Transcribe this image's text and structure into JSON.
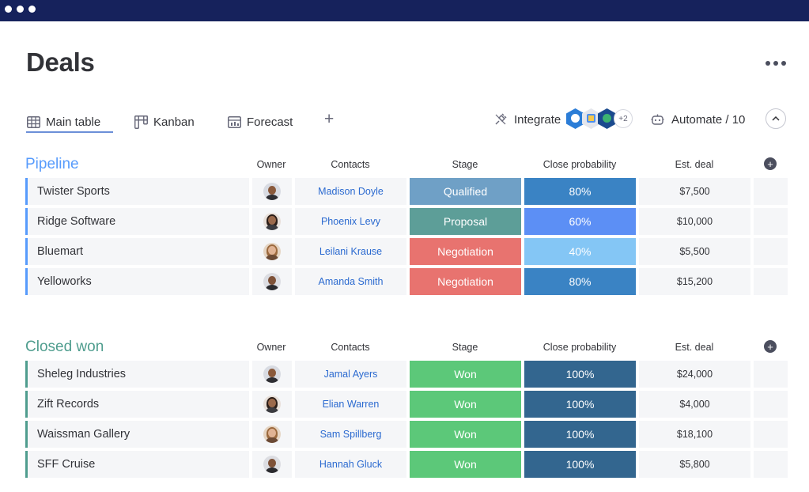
{
  "page": {
    "title": "Deals"
  },
  "views": [
    {
      "label": "Main table",
      "icon": "table-icon",
      "active": true
    },
    {
      "label": "Kanban",
      "icon": "kanban-icon",
      "active": false
    },
    {
      "label": "Forecast",
      "icon": "forecast-icon",
      "active": false
    }
  ],
  "toolbar": {
    "add_view": "+",
    "integrate_label": "Integrate",
    "integrate_extra": "+2",
    "automate_label": "Automate / 10"
  },
  "columns": {
    "owner": "Owner",
    "contacts": "Contacts",
    "stage": "Stage",
    "probability": "Close probability",
    "deal": "Est. deal"
  },
  "colors": {
    "pipeline": "#579bfc",
    "closed_won": "#4f9d8e",
    "qualified": "#6fa0c6",
    "proposal": "#5d9e98",
    "negotiation": "#e8736f",
    "won": "#5cc879",
    "prob_80": "#3a83c4",
    "prob_60": "#5c8ff5",
    "prob_40": "#84c6f5",
    "prob_100": "#33668f"
  },
  "groups": [
    {
      "title": "Pipeline",
      "color": "#579bfc",
      "rows": [
        {
          "name": "Twister Sports",
          "contact": "Madison Doyle",
          "stage": "Qualified",
          "stage_color": "#6fa0c6",
          "probability": "80%",
          "prob_color": "#3a83c4",
          "deal": "$7,500",
          "owner": "man-dark"
        },
        {
          "name": "Ridge Software",
          "contact": "Phoenix Levy",
          "stage": "Proposal",
          "stage_color": "#5d9e98",
          "probability": "60%",
          "prob_color": "#5c8ff5",
          "deal": "$10,000",
          "owner": "woman-dark"
        },
        {
          "name": "Bluemart",
          "contact": "Leilani Krause",
          "stage": "Negotiation",
          "stage_color": "#e8736f",
          "probability": "40%",
          "prob_color": "#84c6f5",
          "deal": "$5,500",
          "owner": "woman-light"
        },
        {
          "name": "Yelloworks",
          "contact": "Amanda Smith",
          "stage": "Negotiation",
          "stage_color": "#e8736f",
          "probability": "80%",
          "prob_color": "#3a83c4",
          "deal": "$15,200",
          "owner": "man-beard"
        }
      ]
    },
    {
      "title": "Closed won",
      "color": "#4f9d8e",
      "rows": [
        {
          "name": "Sheleg Industries",
          "contact": "Jamal Ayers",
          "stage": "Won",
          "stage_color": "#5cc879",
          "probability": "100%",
          "prob_color": "#33668f",
          "deal": "$24,000",
          "owner": "man-dark"
        },
        {
          "name": "Zift Records",
          "contact": "Elian Warren",
          "stage": "Won",
          "stage_color": "#5cc879",
          "probability": "100%",
          "prob_color": "#33668f",
          "deal": "$4,000",
          "owner": "woman-dark"
        },
        {
          "name": "Waissman Gallery",
          "contact": "Sam Spillberg",
          "stage": "Won",
          "stage_color": "#5cc879",
          "probability": "100%",
          "prob_color": "#33668f",
          "deal": "$18,100",
          "owner": "woman-light"
        },
        {
          "name": "SFF Cruise",
          "contact": "Hannah Gluck",
          "stage": "Won",
          "stage_color": "#5cc879",
          "probability": "100%",
          "prob_color": "#33668f",
          "deal": "$5,800",
          "owner": "man-beard"
        }
      ]
    }
  ]
}
